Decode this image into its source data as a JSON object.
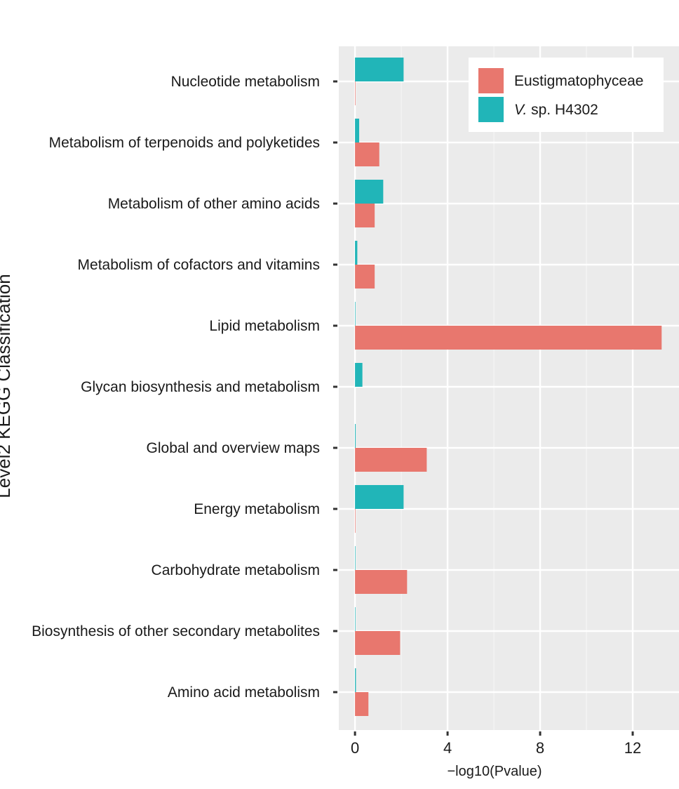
{
  "chart_data": {
    "type": "bar",
    "orientation": "horizontal",
    "xlabel": "−log10(Pvalue)",
    "ylabel": "Level2 KEGG Classification",
    "xlim": [
      -0.7,
      14
    ],
    "xticks": [
      0,
      4,
      8,
      12
    ],
    "grid": true,
    "legend_position": "top-right",
    "categories": [
      "Nucleotide metabolism",
      "Metabolism of terpenoids and polyketides",
      "Metabolism of other amino acids",
      "Metabolism of cofactors and vitamins",
      "Lipid metabolism",
      "Glycan biosynthesis and metabolism",
      "Global and overview maps",
      "Energy metabolism",
      "Carbohydrate metabolism",
      "Biosynthesis of other secondary metabolites",
      "Amino acid metabolism"
    ],
    "series": [
      {
        "name": "Eustigmatophyceae",
        "color": "#E8776E",
        "values": [
          0.02,
          1.05,
          0.85,
          0.85,
          13.25,
          0.0,
          3.1,
          0.02,
          2.25,
          1.95,
          0.58
        ]
      },
      {
        "name": "V. sp. H4302",
        "name_prefix": "V.",
        "name_suffix": " sp. H4302",
        "color": "#21B5B8",
        "values": [
          2.1,
          0.18,
          1.22,
          0.1,
          0.02,
          0.32,
          0.03,
          2.1,
          0.02,
          0.02,
          0.04
        ]
      }
    ]
  },
  "style": {
    "panel_bg": "#EBEBEB",
    "grid_major": "#FFFFFF",
    "grid_minor": "#F5F5F5",
    "tick_color": "#333333"
  }
}
